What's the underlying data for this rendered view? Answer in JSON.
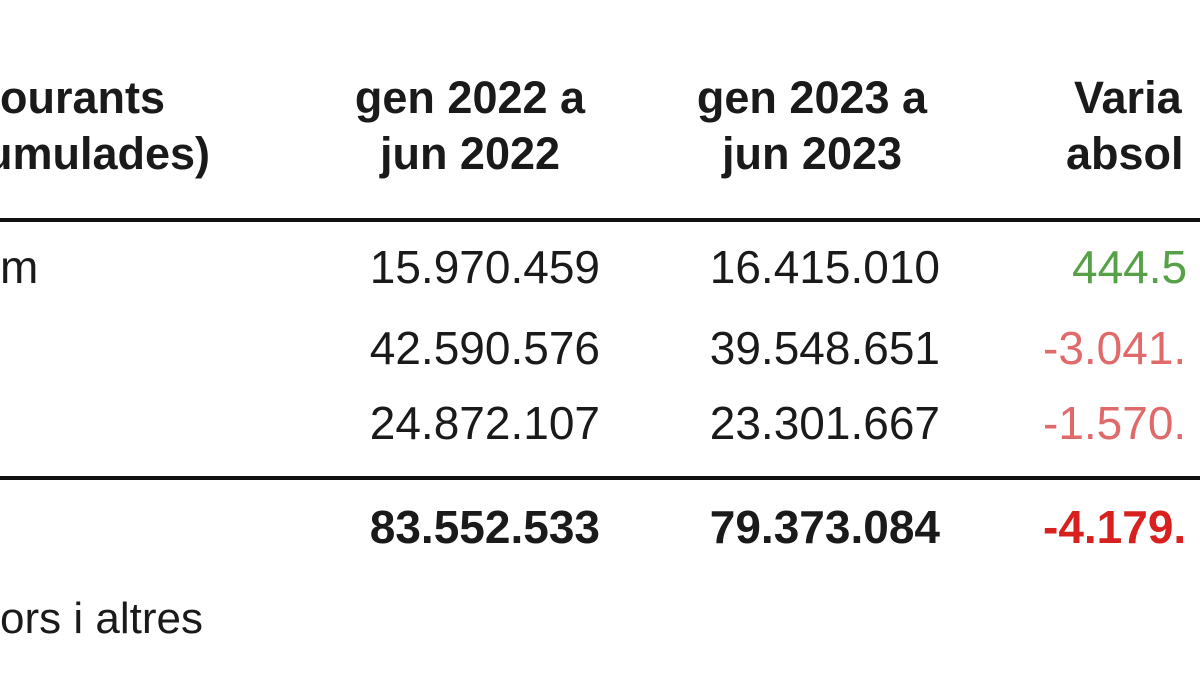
{
  "table": {
    "header": {
      "col1_line1": "ourants",
      "col1_line2": "umulades)",
      "col2_line1": "gen 2022 a",
      "col2_line2": "jun 2022",
      "col3_line1": "gen 2023 a",
      "col3_line2": "jun 2023",
      "col4_line1": "Varia",
      "col4_line2": "absol"
    },
    "rows": [
      {
        "label": "m",
        "v2022": "15.970.459",
        "v2023": "16.415.010",
        "variation": "444.5"
      },
      {
        "label": "",
        "v2022": "42.590.576",
        "v2023": "39.548.651",
        "variation": "-3.041."
      },
      {
        "label": "",
        "v2022": "24.872.107",
        "v2023": "23.301.667",
        "variation": "-1.570."
      }
    ],
    "total": {
      "label": "",
      "v2022": "83.552.533",
      "v2023": "79.373.084",
      "variation": "-4.179."
    },
    "footnote": "ors i altres"
  },
  "colors": {
    "positive": "#56a148",
    "negative": "#e06a6a",
    "negative_total": "#d8201e",
    "rule": "#111111"
  }
}
